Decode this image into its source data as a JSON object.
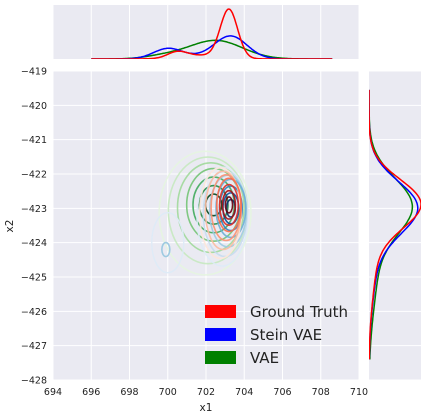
{
  "chart_data": {
    "type": "kde-joint",
    "xlabel": "x1",
    "ylabel": "x2",
    "xlim": [
      694,
      710
    ],
    "ylim": [
      -428,
      -419
    ],
    "xticks": [
      "694",
      "696",
      "698",
      "700",
      "702",
      "704",
      "706",
      "708",
      "710"
    ],
    "yticks": [
      "−428",
      "−427",
      "−426",
      "−425",
      "−424",
      "−423",
      "−422",
      "−421",
      "−420",
      "−419"
    ],
    "grid": true,
    "legend_position": "bottom-right",
    "series": [
      {
        "name": "Ground Truth",
        "color": "#ff0000",
        "cmap": "Reds",
        "center": [
          703.2,
          -422.9
        ],
        "spread": [
          0.45,
          0.55
        ],
        "marginal_x": [
          {
            "mean": 703.2,
            "sd": 0.45,
            "w": 0.75
          },
          {
            "mean": 700.5,
            "sd": 0.5,
            "w": 0.1
          },
          {
            "mean": 701.8,
            "sd": 1.2,
            "w": 0.15
          }
        ],
        "marginal_y": [
          {
            "mean": -422.85,
            "sd": 0.7,
            "w": 0.8
          },
          {
            "mean": -424.3,
            "sd": 1.2,
            "w": 0.2
          }
        ]
      },
      {
        "name": "Stein VAE",
        "color": "#0000ff",
        "cmap": "Blues",
        "center": [
          703.3,
          -423.0
        ],
        "spread": [
          0.55,
          0.6
        ],
        "marginal_x": [
          {
            "mean": 703.3,
            "sd": 0.85,
            "w": 0.65
          },
          {
            "mean": 700.0,
            "sd": 0.75,
            "w": 0.25
          },
          {
            "mean": 701.6,
            "sd": 1.4,
            "w": 0.1
          }
        ],
        "marginal_y": [
          {
            "mean": -422.95,
            "sd": 0.75,
            "w": 0.8
          },
          {
            "mean": -424.4,
            "sd": 1.2,
            "w": 0.2
          }
        ]
      },
      {
        "name": "VAE",
        "color": "#008000",
        "cmap": "Greens",
        "center": [
          702.4,
          -422.9
        ],
        "spread": [
          1.0,
          0.75
        ],
        "marginal_x": [
          {
            "mean": 702.5,
            "sd": 1.4,
            "w": 0.9
          },
          {
            "mean": 699.8,
            "sd": 1.0,
            "w": 0.1
          }
        ],
        "marginal_y": [
          {
            "mean": -422.9,
            "sd": 0.8,
            "w": 0.75
          },
          {
            "mean": -424.6,
            "sd": 1.3,
            "w": 0.25
          }
        ]
      }
    ]
  }
}
